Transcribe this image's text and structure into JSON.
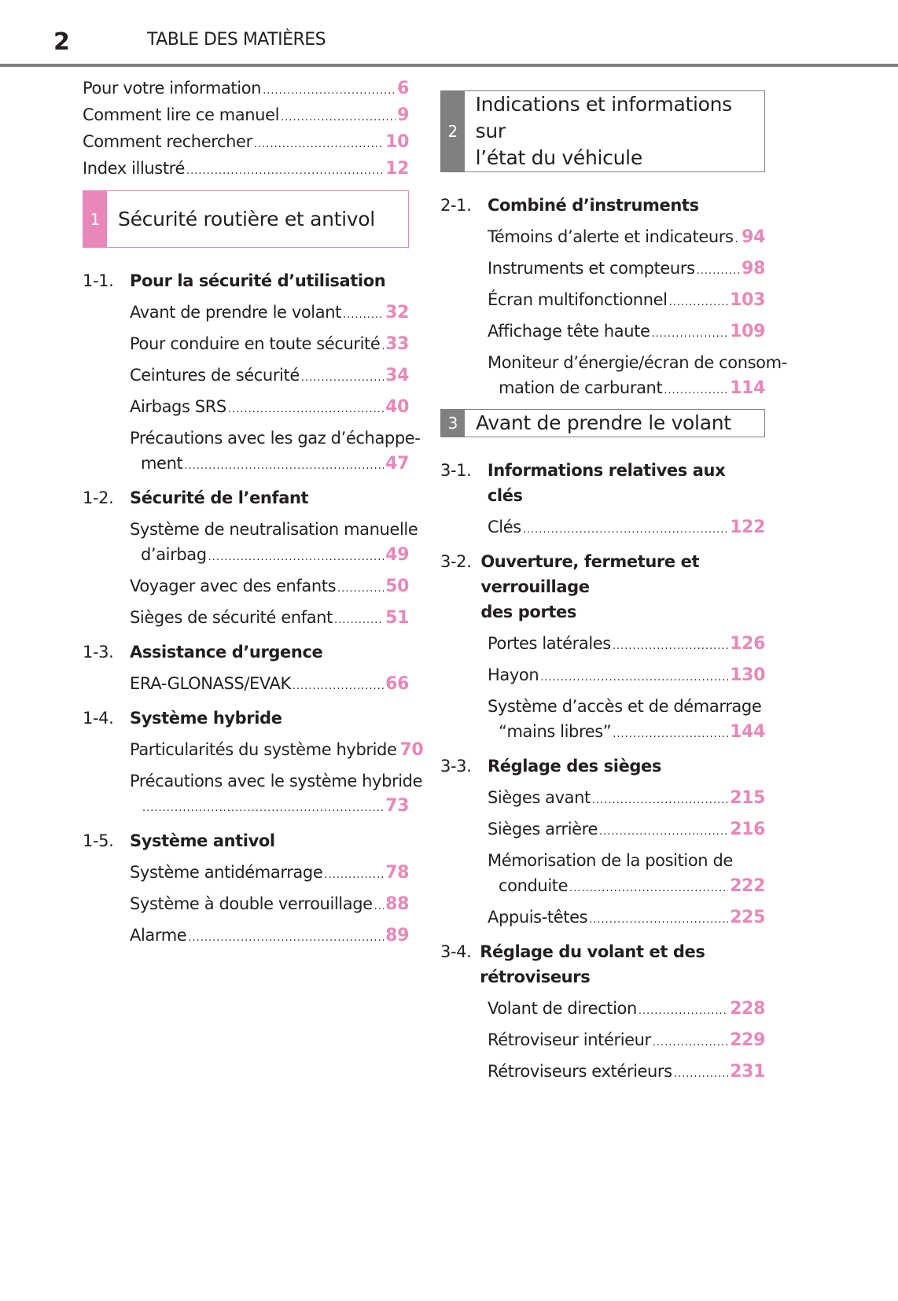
{
  "header": {
    "page_number": "2",
    "title": "TABLE DES MATIÈRES"
  },
  "colors": {
    "accent_pink": "#e888b8",
    "accent_grey": "#808083"
  },
  "left_column": [
    {
      "type": "plain",
      "lines": [
        "Pour votre information"
      ],
      "page": "6"
    },
    {
      "type": "plain",
      "lines": [
        "Comment lire ce manuel"
      ],
      "page": "9"
    },
    {
      "type": "plain",
      "lines": [
        "Comment rechercher"
      ],
      "page": "10"
    },
    {
      "type": "plain",
      "lines": [
        "Index illustré"
      ],
      "page": "12"
    },
    {
      "type": "box",
      "style": "pink",
      "number": "1",
      "lines": [
        "Sécurité routière et antivol"
      ]
    },
    {
      "type": "section",
      "number": "1-1.",
      "lines": [
        "Pour la sécurité d’utilisation"
      ]
    },
    {
      "type": "entry",
      "lines": [
        "Avant de prendre le volant"
      ],
      "page": "32"
    },
    {
      "type": "entry",
      "lines": [
        "Pour conduire en toute sécurité"
      ],
      "page": "33"
    },
    {
      "type": "entry",
      "lines": [
        "Ceintures de sécurité"
      ],
      "page": "34"
    },
    {
      "type": "entry",
      "lines": [
        "Airbags SRS"
      ],
      "page": "40"
    },
    {
      "type": "entry",
      "lines": [
        "Précautions avec les gaz d’échappe-",
        "ment"
      ],
      "page": "47"
    },
    {
      "type": "section",
      "number": "1-2.",
      "lines": [
        "Sécurité de l’enfant"
      ]
    },
    {
      "type": "entry",
      "lines": [
        "Système de neutralisation manuelle",
        "d’airbag"
      ],
      "page": "49"
    },
    {
      "type": "entry",
      "lines": [
        "Voyager avec des enfants"
      ],
      "page": "50"
    },
    {
      "type": "entry",
      "lines": [
        "Sièges de sécurité enfant"
      ],
      "page": "51"
    },
    {
      "type": "section",
      "number": "1-3.",
      "lines": [
        "Assistance d’urgence"
      ]
    },
    {
      "type": "entry",
      "lines": [
        "ERA-GLONASS/EVAK"
      ],
      "page": "66"
    },
    {
      "type": "section",
      "number": "1-4.",
      "lines": [
        "Système hybride"
      ]
    },
    {
      "type": "entry",
      "lines": [
        "Particularités du système hybride"
      ],
      "page": "70"
    },
    {
      "type": "entry",
      "lines": [
        "Précautions avec le système hybride",
        ""
      ],
      "page": "73"
    },
    {
      "type": "section",
      "number": "1-5.",
      "lines": [
        "Système antivol"
      ]
    },
    {
      "type": "entry",
      "lines": [
        "Système antidémarrage"
      ],
      "page": "78"
    },
    {
      "type": "entry",
      "lines": [
        "Système à double verrouillage"
      ],
      "page": "88"
    },
    {
      "type": "entry",
      "lines": [
        "Alarme"
      ],
      "page": "89"
    }
  ],
  "right_column": [
    {
      "type": "box",
      "style": "grey",
      "number": "2",
      "lines": [
        "Indications et informations sur",
        "l’état du véhicule"
      ]
    },
    {
      "type": "section",
      "number": "2-1.",
      "lines": [
        "Combiné d’instruments"
      ]
    },
    {
      "type": "entry",
      "lines": [
        "Témoins d’alerte et indicateurs"
      ],
      "page": "94"
    },
    {
      "type": "entry",
      "lines": [
        "Instruments et compteurs"
      ],
      "page": "98"
    },
    {
      "type": "entry",
      "lines": [
        "Écran multifonctionnel"
      ],
      "page": "103"
    },
    {
      "type": "entry",
      "lines": [
        "Affichage tête haute"
      ],
      "page": "109"
    },
    {
      "type": "entry",
      "lines": [
        "Moniteur d’énergie/écran de consom-",
        "mation de carburant"
      ],
      "page": "114"
    },
    {
      "type": "box",
      "style": "grey",
      "number": "3",
      "lines": [
        "Avant de prendre le volant"
      ]
    },
    {
      "type": "section",
      "number": "3-1.",
      "lines": [
        "Informations relatives aux clés"
      ]
    },
    {
      "type": "entry",
      "lines": [
        "Clés"
      ],
      "page": "122"
    },
    {
      "type": "section",
      "number": "3-2.",
      "lines": [
        "Ouverture, fermeture et verrouillage",
        "des portes"
      ]
    },
    {
      "type": "entry",
      "lines": [
        "Portes latérales"
      ],
      "page": "126"
    },
    {
      "type": "entry",
      "lines": [
        "Hayon"
      ],
      "page": "130"
    },
    {
      "type": "entry",
      "lines": [
        "Système d’accès et de démarrage",
        "“mains libres”"
      ],
      "page": "144"
    },
    {
      "type": "section",
      "number": "3-3.",
      "lines": [
        "Réglage des sièges"
      ]
    },
    {
      "type": "entry",
      "lines": [
        "Sièges avant"
      ],
      "page": "215"
    },
    {
      "type": "entry",
      "lines": [
        "Sièges arrière"
      ],
      "page": "216"
    },
    {
      "type": "entry",
      "lines": [
        "Mémorisation de la position de",
        "conduite"
      ],
      "page": "222"
    },
    {
      "type": "entry",
      "lines": [
        "Appuis-têtes"
      ],
      "page": "225"
    },
    {
      "type": "section",
      "number": "3-4.",
      "lines": [
        "Réglage du volant et des rétroviseurs"
      ]
    },
    {
      "type": "entry",
      "lines": [
        "Volant de direction"
      ],
      "page": "228"
    },
    {
      "type": "entry",
      "lines": [
        "Rétroviseur intérieur"
      ],
      "page": "229"
    },
    {
      "type": "entry",
      "lines": [
        "Rétroviseurs extérieurs"
      ],
      "page": "231"
    }
  ]
}
